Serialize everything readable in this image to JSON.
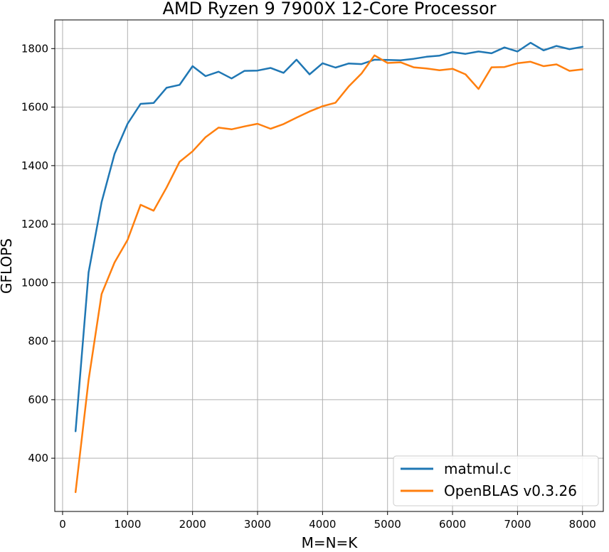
{
  "chart_data": {
    "type": "line",
    "title": "AMD Ryzen 9 7900X 12-Core Processor",
    "xlabel": "M=N=K",
    "ylabel": "GFLOPS",
    "xlim": [
      -120,
      8320
    ],
    "ylim": [
      218,
      1898
    ],
    "xticks": [
      0,
      1000,
      2000,
      3000,
      4000,
      5000,
      6000,
      7000,
      8000
    ],
    "yticks": [
      400,
      600,
      800,
      1000,
      1200,
      1400,
      1600,
      1800
    ],
    "grid": true,
    "legend_position": "lower-right",
    "x": [
      200,
      400,
      600,
      800,
      1000,
      1200,
      1400,
      1600,
      1800,
      2000,
      2200,
      2400,
      2600,
      2800,
      3000,
      3200,
      3400,
      3600,
      3800,
      4000,
      4200,
      4400,
      4600,
      4800,
      5000,
      5200,
      5400,
      5600,
      5800,
      6000,
      6200,
      6400,
      6600,
      6800,
      7000,
      7200,
      7400,
      7600,
      7800,
      8000
    ],
    "series": [
      {
        "name": "matmul.c",
        "color": "#1f77b4",
        "values": [
          492,
          1035,
          1275,
          1440,
          1543,
          1611,
          1614,
          1666,
          1676,
          1740,
          1706,
          1721,
          1698,
          1724,
          1725,
          1734,
          1717,
          1762,
          1712,
          1750,
          1735,
          1749,
          1747,
          1762,
          1761,
          1760,
          1765,
          1772,
          1776,
          1788,
          1782,
          1790,
          1784,
          1804,
          1790,
          1820,
          1794,
          1809,
          1798,
          1806
        ]
      },
      {
        "name": "OpenBLAS v0.3.26",
        "color": "#ff7f0e",
        "values": [
          284,
          667,
          961,
          1069,
          1146,
          1266,
          1246,
          1325,
          1413,
          1449,
          1497,
          1530,
          1524,
          1534,
          1543,
          1526,
          1542,
          1564,
          1585,
          1603,
          1615,
          1670,
          1715,
          1777,
          1751,
          1753,
          1736,
          1732,
          1726,
          1731,
          1712,
          1662,
          1736,
          1737,
          1750,
          1755,
          1740,
          1746,
          1724,
          1729
        ]
      }
    ]
  }
}
